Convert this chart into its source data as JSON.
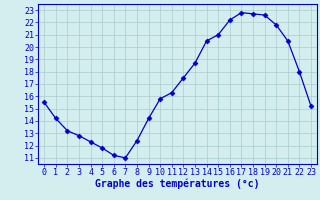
{
  "hours": [
    0,
    1,
    2,
    3,
    4,
    5,
    6,
    7,
    8,
    9,
    10,
    11,
    12,
    13,
    14,
    15,
    16,
    17,
    18,
    19,
    20,
    21,
    22,
    23
  ],
  "temperatures": [
    15.5,
    14.2,
    13.2,
    12.8,
    12.3,
    11.8,
    11.2,
    11.0,
    12.4,
    14.2,
    15.8,
    16.3,
    17.5,
    18.7,
    20.5,
    21.0,
    22.2,
    22.8,
    22.7,
    22.6,
    21.8,
    20.5,
    18.0,
    15.2
  ],
  "line_color": "#0000cc",
  "marker": "D",
  "marker_size": 2.5,
  "bg_color": "#d4eef0",
  "grid_color": "#aacccc",
  "xlabel": "Graphe des températures (°c)",
  "xlabel_fontsize": 7,
  "ylabel_ticks": [
    11,
    12,
    13,
    14,
    15,
    16,
    17,
    18,
    19,
    20,
    21,
    22,
    23
  ],
  "xlim": [
    -0.5,
    23.5
  ],
  "ylim": [
    10.5,
    23.5
  ],
  "tick_fontsize": 6,
  "axis_color": "#0000cc",
  "label_color": "#0000cc",
  "line_width": 0.9
}
